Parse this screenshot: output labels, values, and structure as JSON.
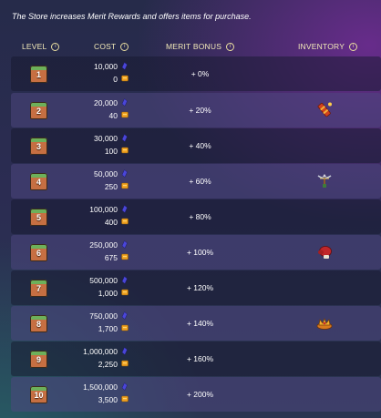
{
  "description": "The Store increases Merit Rewards and offers items for purchase.",
  "headers": {
    "level": "LEVEL",
    "cost": "COST",
    "merit_bonus": "MERIT BONUS",
    "inventory": "INVENTORY"
  },
  "colors": {
    "header_text": "#f2e9b8",
    "row_dark": "#16182d",
    "row_light": "#4e4680",
    "merit_icon": "#4a46d8",
    "gold_icon": "#f0a020"
  },
  "icons": {
    "merit": "merit-crystal-icon",
    "gold": "gold-coin-icon",
    "info": "info-icon"
  },
  "levels": [
    {
      "level": "1",
      "merit_cost": "10,000",
      "gold_cost": "0",
      "bonus": "+ 0%",
      "item": ""
    },
    {
      "level": "2",
      "merit_cost": "20,000",
      "gold_cost": "40",
      "bonus": "+ 20%",
      "item": "firecracker-item-icon"
    },
    {
      "level": "3",
      "merit_cost": "30,000",
      "gold_cost": "100",
      "bonus": "+ 40%",
      "item": ""
    },
    {
      "level": "4",
      "merit_cost": "50,000",
      "gold_cost": "250",
      "bonus": "+ 60%",
      "item": "crossbow-item-icon"
    },
    {
      "level": "5",
      "merit_cost": "100,000",
      "gold_cost": "400",
      "bonus": "+ 80%",
      "item": ""
    },
    {
      "level": "6",
      "merit_cost": "250,000",
      "gold_cost": "675",
      "bonus": "+ 100%",
      "item": "boxing-glove-item-icon"
    },
    {
      "level": "7",
      "merit_cost": "500,000",
      "gold_cost": "1,000",
      "bonus": "+ 120%",
      "item": ""
    },
    {
      "level": "8",
      "merit_cost": "750,000",
      "gold_cost": "1,700",
      "bonus": "+ 140%",
      "item": "crown-item-icon"
    },
    {
      "level": "9",
      "merit_cost": "1,000,000",
      "gold_cost": "2,250",
      "bonus": "+ 160%",
      "item": ""
    },
    {
      "level": "10",
      "merit_cost": "1,500,000",
      "gold_cost": "3,500",
      "bonus": "+ 200%",
      "item": ""
    }
  ]
}
